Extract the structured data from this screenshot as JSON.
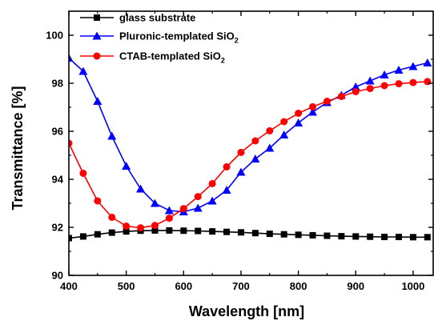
{
  "chart_data": {
    "type": "line",
    "title": "",
    "xlabel": "Wavelength [nm]",
    "ylabel": "Transmittance [%]",
    "xlim": [
      400,
      1035
    ],
    "ylim": [
      90,
      101
    ],
    "xticks": [
      400,
      500,
      600,
      700,
      800,
      900,
      1000
    ],
    "yticks": [
      90,
      92,
      94,
      96,
      98,
      100
    ],
    "grid": false,
    "legend_position": "top-left",
    "series": [
      {
        "name": "glass substrate",
        "legend": {
          "main": "glass substrate",
          "sub": ""
        },
        "color": "#000000",
        "marker": "square",
        "x": [
          400,
          425,
          450,
          475,
          500,
          525,
          550,
          575,
          600,
          625,
          650,
          675,
          700,
          725,
          750,
          775,
          800,
          825,
          850,
          875,
          900,
          925,
          950,
          975,
          1000,
          1025
        ],
        "y": [
          91.55,
          91.62,
          91.71,
          91.78,
          91.83,
          91.86,
          91.87,
          91.87,
          91.86,
          91.85,
          91.83,
          91.81,
          91.79,
          91.76,
          91.73,
          91.71,
          91.69,
          91.67,
          91.65,
          91.63,
          91.62,
          91.61,
          91.6,
          91.6,
          91.59,
          91.59
        ]
      },
      {
        "name": "Pluronic-templated SiO2",
        "legend": {
          "main": "Pluronic-templated SiO",
          "sub": "2"
        },
        "color": "#0000ff",
        "marker": "triangle",
        "x": [
          400,
          425,
          450,
          475,
          500,
          525,
          550,
          575,
          600,
          625,
          650,
          675,
          700,
          725,
          750,
          775,
          800,
          825,
          850,
          875,
          900,
          925,
          950,
          975,
          1000,
          1025
        ],
        "y": [
          99.05,
          98.5,
          97.25,
          95.8,
          94.55,
          93.6,
          93.0,
          92.7,
          92.65,
          92.8,
          93.1,
          93.55,
          94.3,
          94.85,
          95.3,
          95.85,
          96.35,
          96.8,
          97.2,
          97.5,
          97.85,
          98.1,
          98.35,
          98.55,
          98.7,
          98.85
        ]
      },
      {
        "name": "CTAB-templated SiO2",
        "legend": {
          "main": "CTAB-templated SiO",
          "sub": "2"
        },
        "color": "#ff0000",
        "marker": "circle",
        "x": [
          400,
          425,
          450,
          475,
          500,
          525,
          550,
          575,
          600,
          625,
          650,
          675,
          700,
          725,
          750,
          775,
          800,
          825,
          850,
          875,
          900,
          925,
          950,
          975,
          1000,
          1025
        ],
        "y": [
          95.5,
          94.25,
          93.1,
          92.42,
          92.05,
          91.98,
          92.08,
          92.38,
          92.78,
          93.28,
          93.82,
          94.52,
          95.12,
          95.6,
          96.02,
          96.4,
          96.75,
          97.02,
          97.25,
          97.45,
          97.65,
          97.78,
          97.9,
          97.98,
          98.03,
          98.07
        ]
      }
    ]
  }
}
